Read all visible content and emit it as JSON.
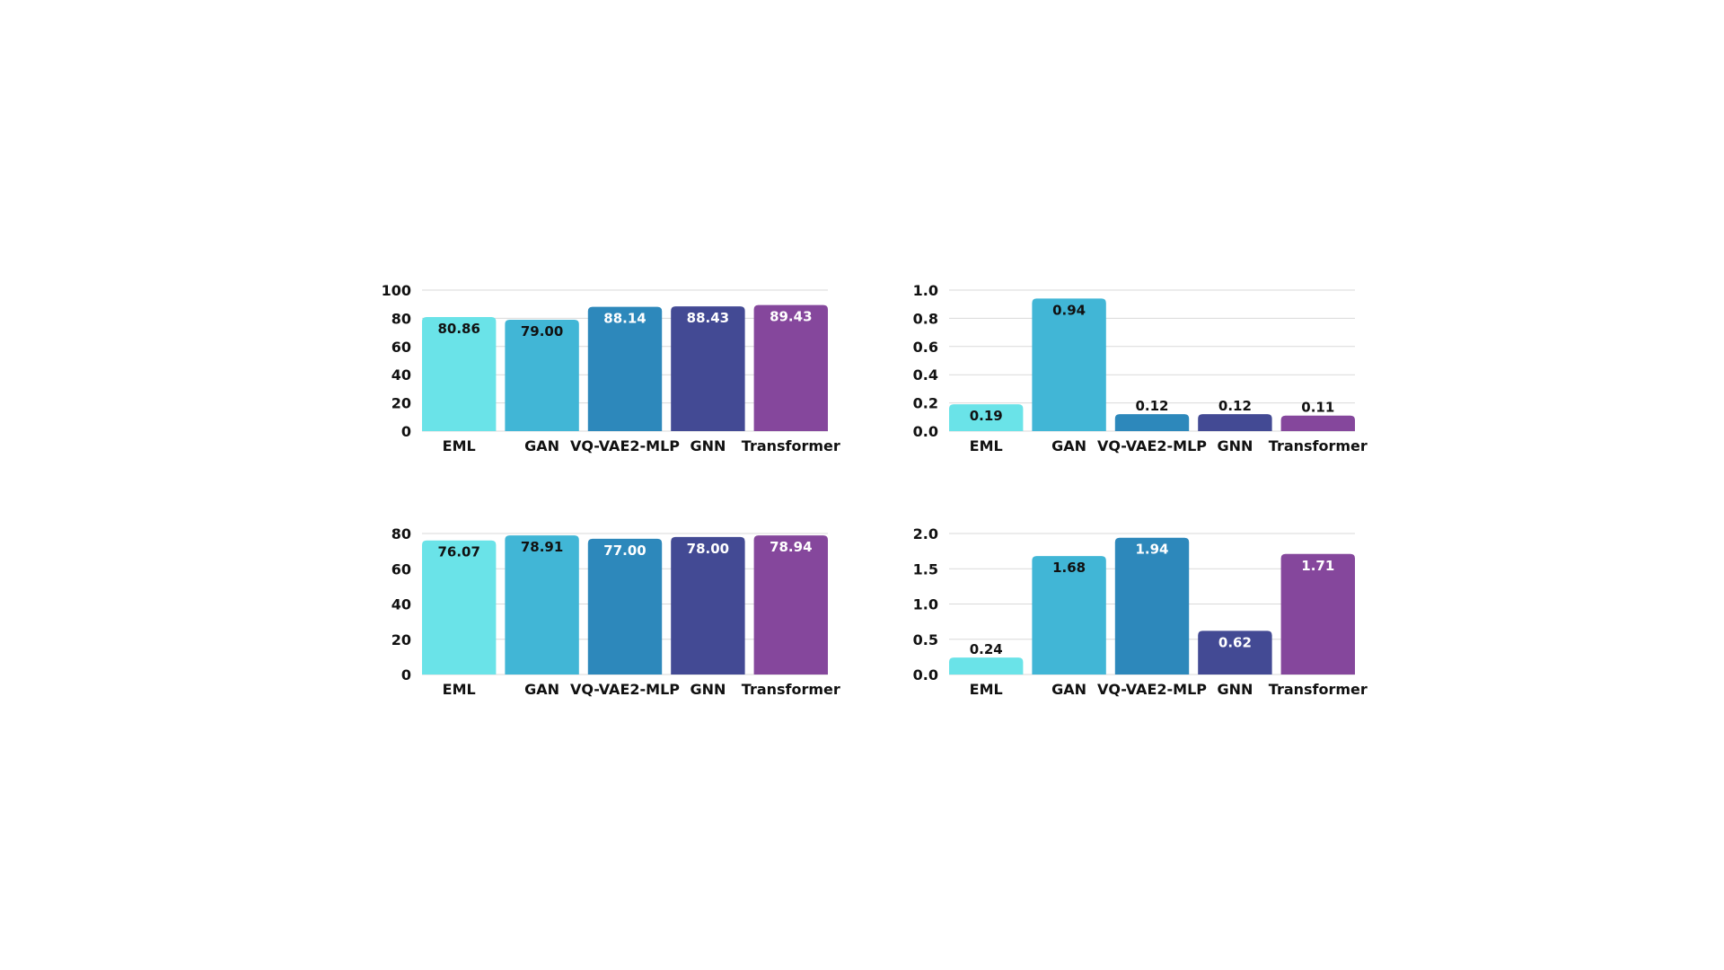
{
  "colors": {
    "EML": "#6ae3e8",
    "GAN": "#41b6d6",
    "VQ-VAE2-MLP": "#2d88bb",
    "GNN": "#434a94",
    "Transformer": "#85479c",
    "grid": "#d9d9d9",
    "text_dark": "#111111",
    "text_light": "#ffffff"
  },
  "chart_data": [
    {
      "type": "bar",
      "categories": [
        "EML",
        "GAN",
        "VQ-VAE2-MLP",
        "GNN",
        "Transformer"
      ],
      "values": [
        80.86,
        79.0,
        88.14,
        88.43,
        89.43
      ],
      "value_labels": [
        "80.86",
        "79.00",
        "88.14",
        "88.43",
        "89.43"
      ],
      "ylim": [
        0,
        100
      ],
      "yticks": [
        0,
        20,
        40,
        60,
        80,
        100
      ],
      "ytick_labels": [
        "0",
        "20",
        "40",
        "60",
        "80",
        "100"
      ],
      "label_colors": [
        "dark",
        "dark",
        "light",
        "light",
        "light"
      ],
      "grid": true,
      "legend": "none",
      "title": "",
      "xlabel": "",
      "ylabel": ""
    },
    {
      "type": "bar",
      "categories": [
        "EML",
        "GAN",
        "VQ-VAE2-MLP",
        "GNN",
        "Transformer"
      ],
      "values": [
        0.19,
        0.94,
        0.12,
        0.12,
        0.11
      ],
      "value_labels": [
        "0.19",
        "0.94",
        "0.12",
        "0.12",
        "0.11"
      ],
      "ylim": [
        0,
        1.0
      ],
      "yticks": [
        0,
        0.2,
        0.4,
        0.6,
        0.8,
        1.0
      ],
      "ytick_labels": [
        "0.0",
        "0.2",
        "0.4",
        "0.6",
        "0.8",
        "1.0"
      ],
      "label_colors": [
        "dark",
        "dark",
        "dark",
        "dark",
        "dark"
      ],
      "grid": true,
      "legend": "none",
      "title": "",
      "xlabel": "",
      "ylabel": ""
    },
    {
      "type": "bar",
      "categories": [
        "EML",
        "GAN",
        "VQ-VAE2-MLP",
        "GNN",
        "Transformer"
      ],
      "values": [
        76.07,
        78.91,
        77.0,
        78.0,
        78.94
      ],
      "value_labels": [
        "76.07",
        "78.91",
        "77.00",
        "78.00",
        "78.94"
      ],
      "ylim": [
        0,
        80
      ],
      "yticks": [
        0,
        20,
        40,
        60,
        80
      ],
      "ytick_labels": [
        "0",
        "20",
        "40",
        "60",
        "80"
      ],
      "label_colors": [
        "dark",
        "dark",
        "light",
        "light",
        "light"
      ],
      "grid": true,
      "legend": "none",
      "title": "",
      "xlabel": "",
      "ylabel": ""
    },
    {
      "type": "bar",
      "categories": [
        "EML",
        "GAN",
        "VQ-VAE2-MLP",
        "GNN",
        "Transformer"
      ],
      "values": [
        0.24,
        1.68,
        1.94,
        0.62,
        1.71
      ],
      "value_labels": [
        "0.24",
        "1.68",
        "1.94",
        "0.62",
        "1.71"
      ],
      "ylim": [
        0,
        2.0
      ],
      "yticks": [
        0,
        0.5,
        1.0,
        1.5,
        2.0
      ],
      "ytick_labels": [
        "0.0",
        "0.5",
        "1.0",
        "1.5",
        "2.0"
      ],
      "label_colors": [
        "dark",
        "dark",
        "light",
        "light",
        "light"
      ],
      "grid": true,
      "legend": "none",
      "title": "",
      "xlabel": "",
      "ylabel": ""
    }
  ]
}
